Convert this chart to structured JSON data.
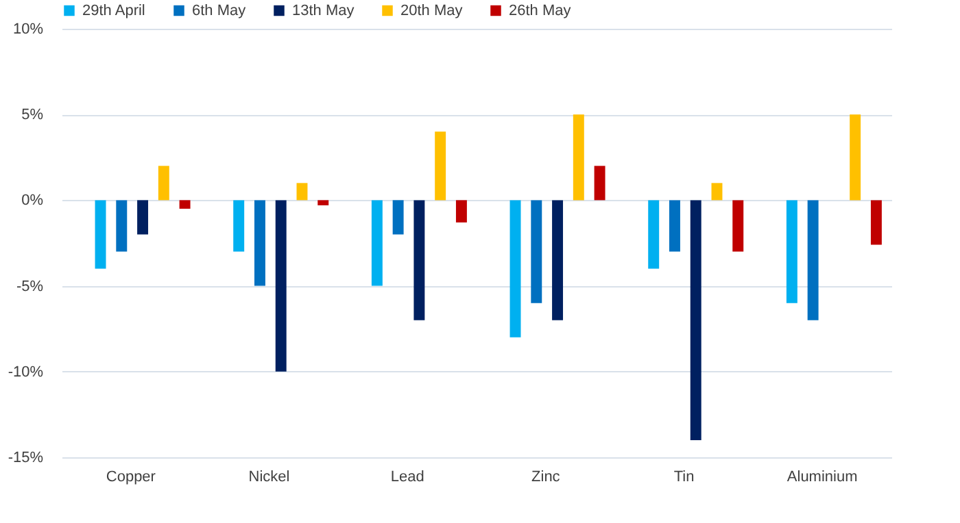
{
  "chart_data": {
    "type": "bar",
    "categories": [
      "Copper",
      "Nickel",
      "Lead",
      "Zinc",
      "Tin",
      "Aluminium"
    ],
    "series": [
      {
        "name": "29th April",
        "color": "#00b0f0",
        "values": [
          -4,
          -3,
          -5,
          -8,
          -4,
          -6
        ]
      },
      {
        "name": "6th May",
        "color": "#0070c0",
        "values": [
          -3,
          -5,
          -2,
          -6,
          -3,
          -7
        ]
      },
      {
        "name": "13th May",
        "color": "#002060",
        "values": [
          -2,
          -10,
          -7,
          -7,
          -14,
          null
        ]
      },
      {
        "name": "20th May",
        "color": "#ffc000",
        "values": [
          2,
          1,
          4,
          5,
          1,
          5
        ]
      },
      {
        "name": "26th May",
        "color": "#c00000",
        "values": [
          -0.5,
          -0.3,
          -1.3,
          2,
          -3,
          -2.6
        ]
      }
    ],
    "ylim": [
      -15,
      10
    ],
    "yticks": [
      {
        "value": -15,
        "label": "-15%"
      },
      {
        "value": -10,
        "label": "-10%"
      },
      {
        "value": -5,
        "label": "-5%"
      },
      {
        "value": 0,
        "label": "0%"
      },
      {
        "value": 5,
        "label": "5%"
      },
      {
        "value": 10,
        "label": "10%"
      }
    ],
    "grid": "y",
    "legend": "top"
  }
}
